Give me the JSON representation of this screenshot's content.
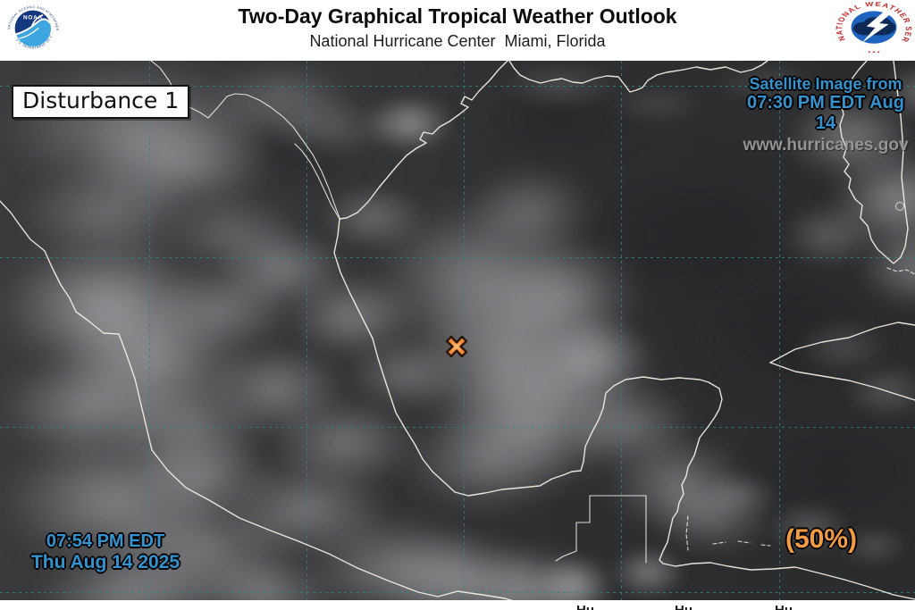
{
  "header": {
    "title": "Two-Day Graphical Tropical Weather Outlook",
    "subtitle": "National Hurricane Center  Miami, Florida",
    "noaa_label": "NOAA",
    "noaa_ring_top": "NATIONAL OCEANIC AND ATMOSPHERIC ADMINISTRATION",
    "noaa_ring_bottom": "U.S. DEPARTMENT OF COMMERCE",
    "nws_ring_text": "NATIONAL WEATHER SERVICE",
    "nws_ring_stars": "• • •"
  },
  "map": {
    "disturbance_label": "Disturbance 1",
    "satellite_info": {
      "line1": "Satellite Image from",
      "line2": "07:30 PM EDT Aug 14"
    },
    "website": "www.hurricanes.gov",
    "issued": {
      "line1": "07:54 PM EDT",
      "line2": "Thu Aug 14 2025"
    },
    "formation_chance": "(50%)",
    "marker_symbol": "X"
  },
  "bottom_bar": {
    "fragments": [
      "Hu",
      "Hu",
      "Hu"
    ]
  },
  "colors": {
    "info_blue": "#3493cf",
    "orange": "#f39b43",
    "grid": "#2a8585",
    "coast": "#f2ece2"
  }
}
